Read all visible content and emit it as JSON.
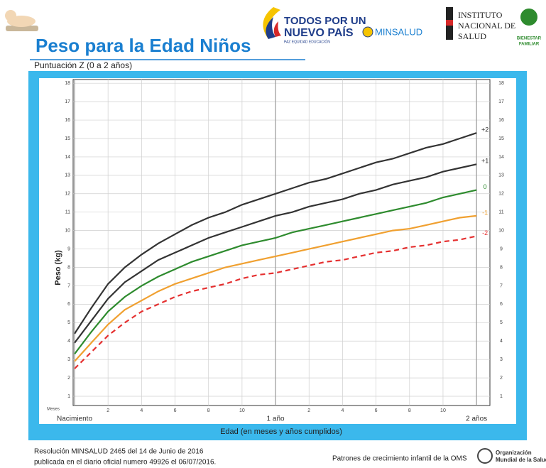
{
  "header": {
    "logo_line1": "TODOS POR UN",
    "logo_line2": "NUEVO PAÍS",
    "logo_tagline": "PAZ  EQUIDAD  EDUCACIÓN",
    "ministry": "MINSALUD",
    "ins_line1": "INSTITUTO",
    "ins_line2": "NACIONAL DE",
    "ins_line3": "SALUD",
    "icbf_line1": "BIENESTAR",
    "icbf_line2": "FAMILIAR"
  },
  "footer": {
    "resolution": "Resolución MINSALUD  2465 del 14 de Junio de 2016",
    "publication": "publicada en el diario oficial numero 49926 el 06/07/2016.",
    "source": "Patrones de crecimiento infantil de la OMS",
    "org_line1": "Organización",
    "org_line2": "Mundial de la Salud"
  },
  "chart_data": {
    "type": "line",
    "title": "Peso para la Edad Niños",
    "subtitle": "Puntuación  Z (0 a 2 años)",
    "x_label": "Edad (en meses y años cumplidos)",
    "x_unit_label": "Meses",
    "y_label": "Peso (kg)",
    "x": [
      0,
      1,
      2,
      3,
      4,
      5,
      6,
      7,
      8,
      9,
      10,
      11,
      12,
      13,
      14,
      15,
      16,
      17,
      18,
      19,
      20,
      21,
      22,
      23,
      24
    ],
    "xlim": [
      0,
      24.8
    ],
    "xticks": [
      {
        "value": 0,
        "label": "Nacimiento"
      },
      2,
      4,
      6,
      8,
      10,
      {
        "value": 12,
        "label": "1 año"
      },
      {
        "value": 14,
        "label": "2"
      },
      {
        "value": 16,
        "label": "4"
      },
      {
        "value": 18,
        "label": "6"
      },
      {
        "value": 20,
        "label": "8"
      },
      {
        "value": 22,
        "label": "10"
      },
      {
        "value": 24,
        "label": "2 años"
      }
    ],
    "ylim": [
      0.5,
      18.2
    ],
    "yticks": [
      1,
      2,
      3,
      4,
      5,
      6,
      7,
      8,
      9,
      10,
      11,
      12,
      13,
      14,
      15,
      16,
      17,
      18
    ],
    "grid": true,
    "series": [
      {
        "name": "+2",
        "color": "#333333",
        "dashed": false,
        "values": [
          4.4,
          5.8,
          7.1,
          8.0,
          8.7,
          9.3,
          9.8,
          10.3,
          10.7,
          11.0,
          11.4,
          11.7,
          12.0,
          12.3,
          12.6,
          12.8,
          13.1,
          13.4,
          13.7,
          13.9,
          14.2,
          14.5,
          14.7,
          15.0,
          15.3
        ]
      },
      {
        "name": "+1",
        "color": "#333333",
        "dashed": false,
        "values": [
          3.9,
          5.1,
          6.3,
          7.2,
          7.8,
          8.4,
          8.8,
          9.2,
          9.6,
          9.9,
          10.2,
          10.5,
          10.8,
          11.0,
          11.3,
          11.5,
          11.7,
          12.0,
          12.2,
          12.5,
          12.7,
          12.9,
          13.2,
          13.4,
          13.6
        ]
      },
      {
        "name": "0",
        "color": "#2e8b2e",
        "dashed": false,
        "values": [
          3.3,
          4.5,
          5.6,
          6.4,
          7.0,
          7.5,
          7.9,
          8.3,
          8.6,
          8.9,
          9.2,
          9.4,
          9.6,
          9.9,
          10.1,
          10.3,
          10.5,
          10.7,
          10.9,
          11.1,
          11.3,
          11.5,
          11.8,
          12.0,
          12.2
        ]
      },
      {
        "name": "-1",
        "color": "#f0a030",
        "dashed": false,
        "values": [
          2.9,
          3.9,
          4.9,
          5.7,
          6.2,
          6.7,
          7.1,
          7.4,
          7.7,
          8.0,
          8.2,
          8.4,
          8.6,
          8.8,
          9.0,
          9.2,
          9.4,
          9.6,
          9.8,
          10.0,
          10.1,
          10.3,
          10.5,
          10.7,
          10.8
        ]
      },
      {
        "name": "-2",
        "color": "#e53030",
        "dashed": true,
        "values": [
          2.5,
          3.4,
          4.3,
          5.0,
          5.6,
          6.0,
          6.4,
          6.7,
          6.9,
          7.1,
          7.4,
          7.6,
          7.7,
          7.9,
          8.1,
          8.3,
          8.4,
          8.6,
          8.8,
          8.9,
          9.1,
          9.2,
          9.4,
          9.5,
          9.7
        ]
      }
    ]
  }
}
